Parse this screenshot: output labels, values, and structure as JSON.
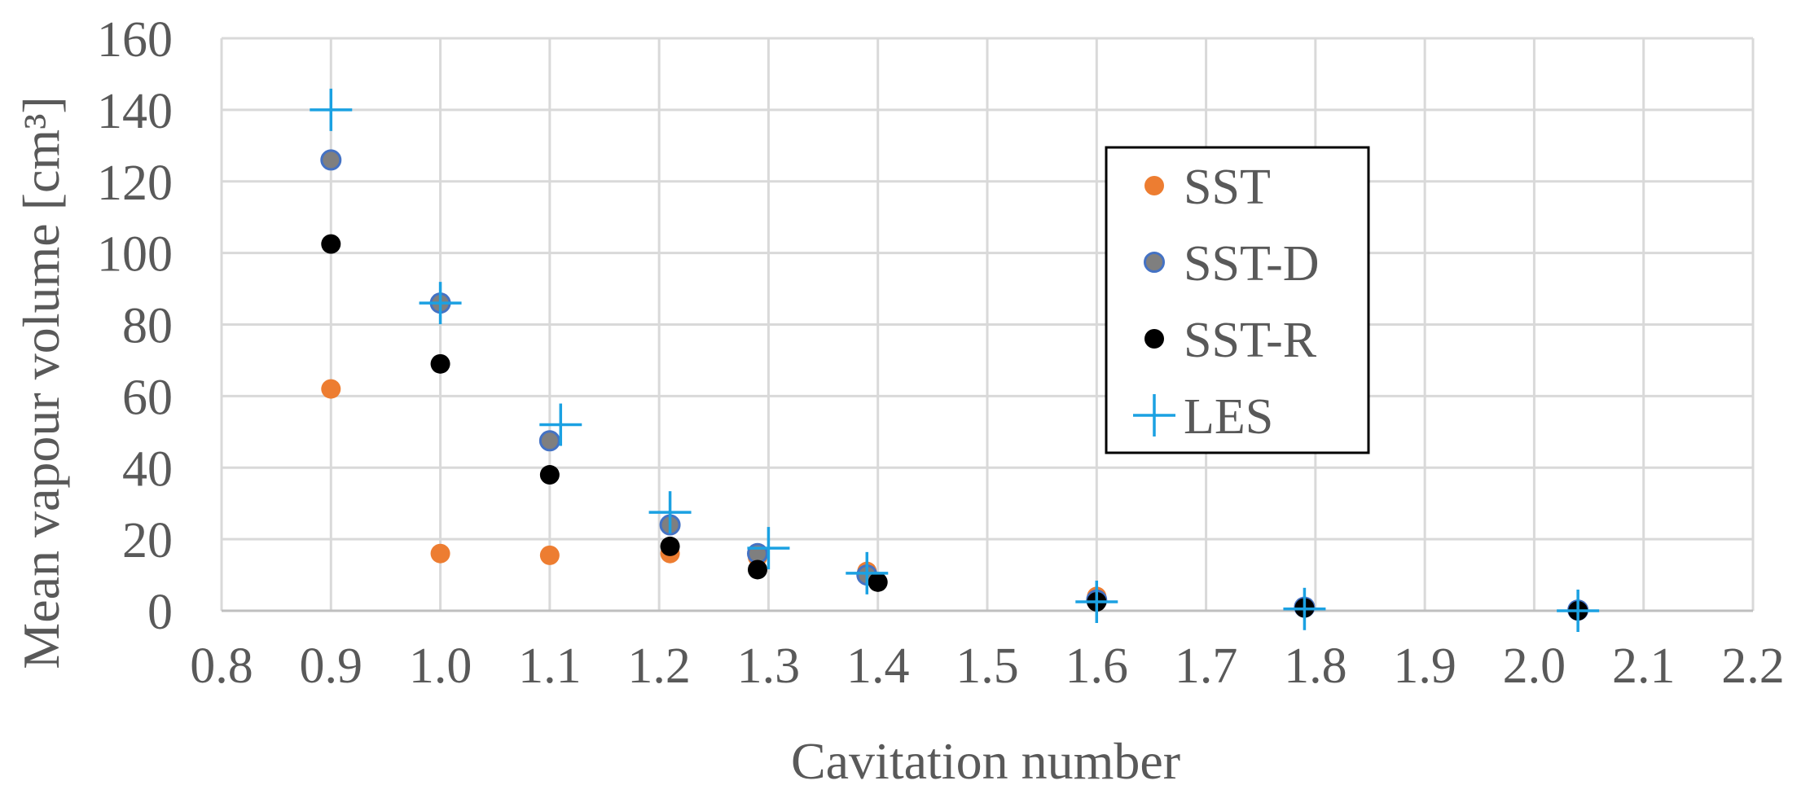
{
  "chart_data": {
    "type": "scatter",
    "title": "",
    "xlabel": "Cavitation number",
    "ylabel": "Mean vapour volume [cm³]",
    "xlim": [
      0.8,
      2.2
    ],
    "ylim": [
      0,
      160
    ],
    "x_ticks": [
      "0.8",
      "0.9",
      "1.0",
      "1.1",
      "1.2",
      "1.3",
      "1.4",
      "1.5",
      "1.6",
      "1.7",
      "1.8",
      "1.9",
      "2.0",
      "2.1",
      "2.2"
    ],
    "y_ticks": [
      "0",
      "20",
      "40",
      "60",
      "80",
      "100",
      "120",
      "140",
      "160"
    ],
    "grid": true,
    "legend_position": "upper-center-right",
    "series": [
      {
        "name": "SST",
        "marker": "circle",
        "color": "#ed7d31",
        "points": [
          [
            0.9,
            62
          ],
          [
            1.0,
            16
          ],
          [
            1.1,
            15.5
          ],
          [
            1.21,
            16
          ],
          [
            1.29,
            15
          ],
          [
            1.39,
            11
          ],
          [
            1.6,
            4
          ],
          [
            1.79,
            1
          ],
          [
            2.04,
            0.2
          ]
        ]
      },
      {
        "name": "SST-D",
        "marker": "circle-outline",
        "color": "#7f7f7f",
        "edge_color": "#4472c4",
        "points": [
          [
            0.9,
            126
          ],
          [
            1.0,
            86
          ],
          [
            1.1,
            47.5
          ],
          [
            1.21,
            24
          ],
          [
            1.29,
            16
          ],
          [
            1.39,
            10
          ],
          [
            1.6,
            3
          ],
          [
            1.79,
            1
          ],
          [
            2.04,
            0.2
          ]
        ]
      },
      {
        "name": "SST-R",
        "marker": "circle",
        "color": "#000000",
        "points": [
          [
            0.9,
            102.5
          ],
          [
            1.0,
            69
          ],
          [
            1.1,
            38
          ],
          [
            1.21,
            18
          ],
          [
            1.29,
            11.5
          ],
          [
            1.4,
            8
          ],
          [
            1.6,
            2.5
          ],
          [
            1.79,
            0.8
          ],
          [
            2.04,
            0
          ]
        ]
      },
      {
        "name": "LES",
        "marker": "plus",
        "color": "#1ba1e2",
        "points": [
          [
            0.9,
            140
          ],
          [
            1.0,
            86
          ],
          [
            1.11,
            52
          ],
          [
            1.21,
            27.5
          ],
          [
            1.3,
            17.5
          ],
          [
            1.39,
            10.5
          ],
          [
            1.6,
            2.5
          ],
          [
            1.79,
            0.5
          ],
          [
            2.04,
            0
          ]
        ]
      }
    ]
  }
}
